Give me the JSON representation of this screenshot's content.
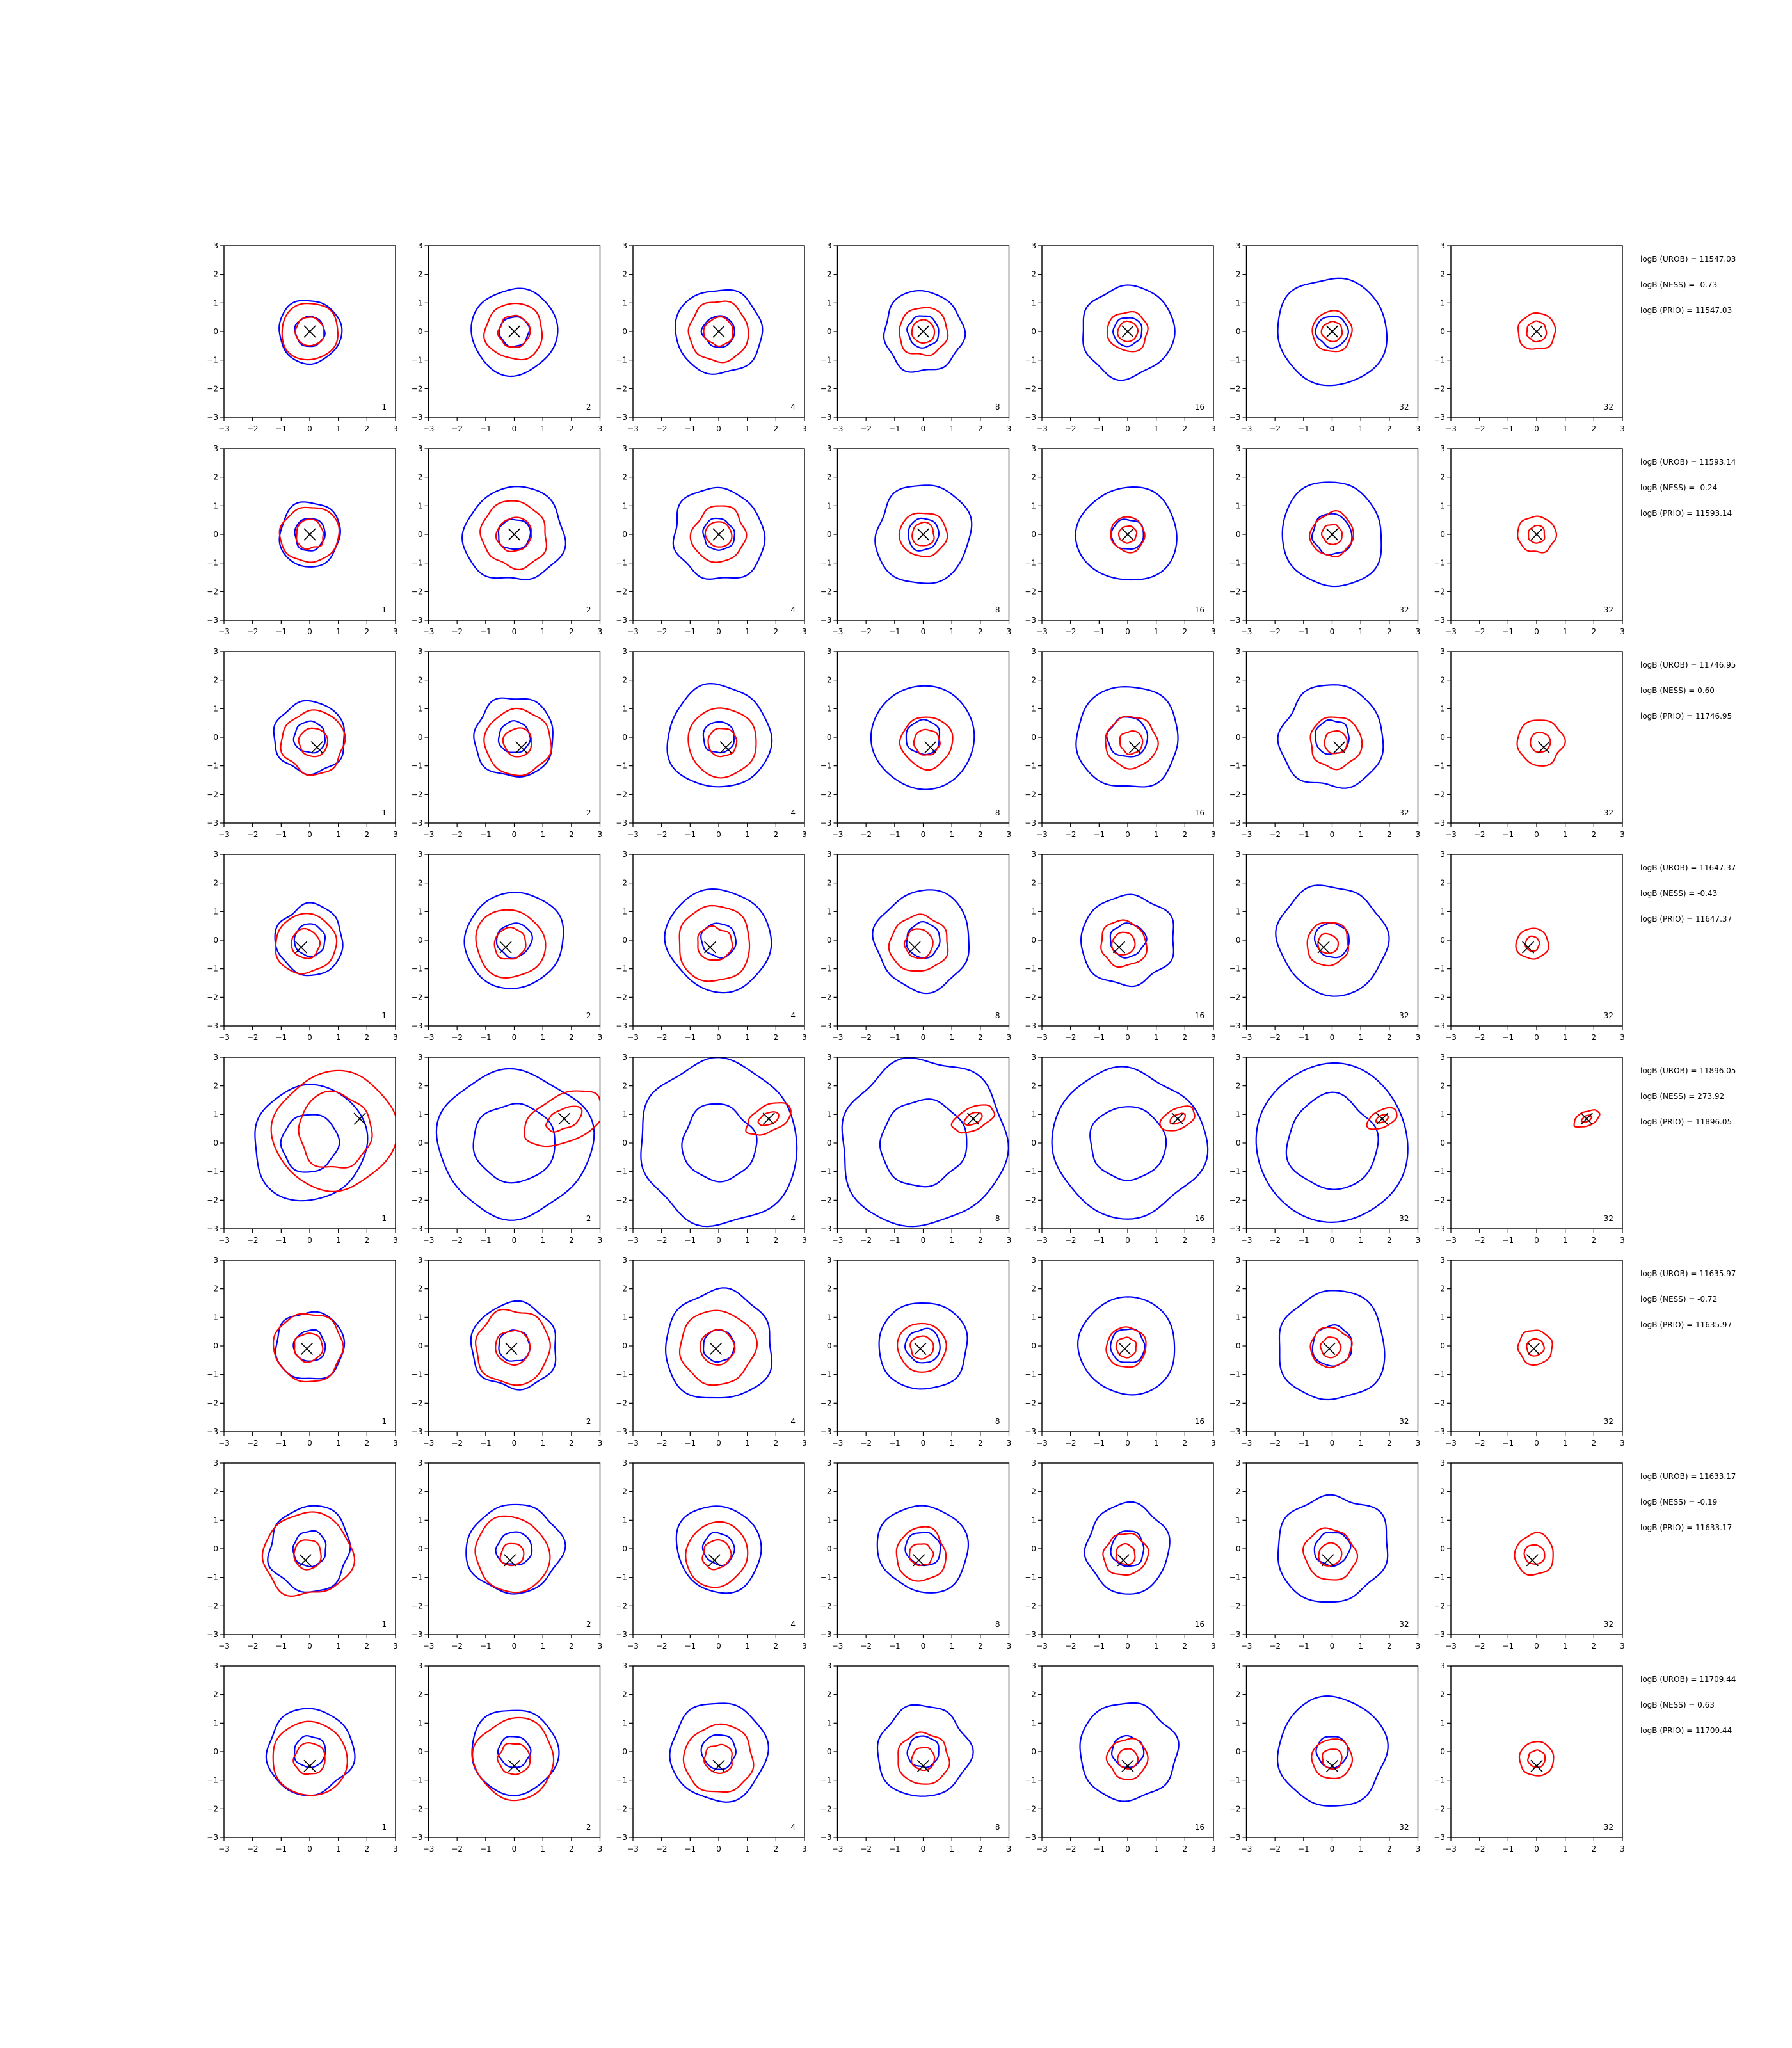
{
  "chart_data": {
    "type": "contour",
    "grid": {
      "rows": 8,
      "cols": 7
    },
    "axes": {
      "xlim": [
        -3,
        3
      ],
      "ylim": [
        -3,
        3
      ],
      "ticks": [
        -3,
        -2,
        -1,
        0,
        1,
        2,
        3
      ]
    },
    "colors": {
      "blue": "#0000ff",
      "red": "#ff0000",
      "marker": "#000000",
      "frame": "#000000"
    },
    "column_labels": [
      "1",
      "2",
      "4",
      "8",
      "16",
      "32",
      "32"
    ],
    "rows": [
      {
        "marker": [
          0.0,
          0.0
        ],
        "stats": [
          "logB (UROB) = 11547.03",
          "logB (NESS) = -0.73",
          "logB (PRIO) = 11547.03"
        ],
        "panels": [
          {
            "blue": [
              1.1,
              0.52
            ],
            "red": [
              1.0,
              0.5
            ]
          },
          {
            "blue": [
              1.5,
              0.52
            ],
            "red": [
              1.0,
              0.55
            ]
          },
          {
            "blue": [
              1.5,
              0.55
            ],
            "red": [
              1.05,
              0.5
            ]
          },
          {
            "blue": [
              1.4,
              0.55
            ],
            "red": [
              0.85,
              0.4
            ]
          },
          {
            "blue": [
              1.6,
              0.5
            ],
            "red": [
              0.7,
              0.35
            ]
          },
          {
            "blue": [
              1.9,
              0.55
            ],
            "red": [
              0.7,
              0.35
            ]
          },
          {
            "blue": [],
            "red": [
              0.65,
              0.35
            ]
          }
        ]
      },
      {
        "marker": [
          0.0,
          0.0
        ],
        "stats": [
          "logB (UROB) = 11593.14",
          "logB (NESS) = -0.24",
          "logB (PRIO) = 11593.14"
        ],
        "panels": [
          {
            "blue": [
              1.1,
              0.55
            ],
            "red": [
              1.0,
              0.5
            ]
          },
          {
            "blue": [
              1.7,
              0.55
            ],
            "red": [
              1.15,
              0.6
            ]
          },
          {
            "blue": [
              1.6,
              0.55
            ],
            "red": [
              0.95,
              0.45
            ]
          },
          {
            "blue": [
              1.7,
              0.55
            ],
            "red": [
              0.8,
              0.4
            ]
          },
          {
            "blue": [
              1.7,
              0.55
            ],
            "red": [
              0.6,
              0.3
            ]
          },
          {
            "blue": [
              1.8,
              0.7
            ],
            "red": [
              0.75,
              0.35
            ]
          },
          {
            "blue": [],
            "red": [
              0.65,
              0.3
            ]
          }
        ]
      },
      {
        "marker": [
          0.25,
          -0.35
        ],
        "stats": [
          "logB (UROB) = 11746.95",
          "logB (NESS) = 0.60",
          "logB (PRIO) = 11746.95"
        ],
        "panels": [
          {
            "blue": [
              1.25,
              0.55
            ],
            "red": [
              1.1,
              0.5
            ]
          },
          {
            "blue": [
              1.4,
              0.55
            ],
            "red": [
              1.15,
              0.5
            ]
          },
          {
            "blue": [
              1.8,
              0.55
            ],
            "red": [
              1.2,
              0.5
            ]
          },
          {
            "blue": [
              1.8,
              0.6
            ],
            "red": [
              0.9,
              0.45
            ]
          },
          {
            "blue": [
              1.8,
              0.7
            ],
            "red": [
              0.9,
              0.4
            ]
          },
          {
            "blue": [
              1.8,
              0.6
            ],
            "red": [
              0.9,
              0.4
            ]
          },
          {
            "blue": [],
            "red": [
              0.8,
              0.35
            ]
          }
        ]
      },
      {
        "marker": [
          -0.3,
          -0.25
        ],
        "stats": [
          "logB (UROB) = 11647.37",
          "logB (NESS) = -0.43",
          "logB (PRIO) = 11647.37"
        ],
        "panels": [
          {
            "blue": [
              1.2,
              0.55
            ],
            "red": [
              1.05,
              0.5
            ]
          },
          {
            "blue": [
              1.7,
              0.6
            ],
            "red": [
              1.2,
              0.55
            ]
          },
          {
            "blue": [
              1.8,
              0.6
            ],
            "red": [
              1.3,
              0.6
            ]
          },
          {
            "blue": [
              1.7,
              0.6
            ],
            "red": [
              1.0,
              0.5
            ]
          },
          {
            "blue": [
              1.6,
              0.6
            ],
            "red": [
              0.8,
              0.4
            ]
          },
          {
            "blue": [
              1.9,
              0.6
            ],
            "red": [
              0.75,
              0.35
            ]
          },
          {
            "blue": [],
            "red": [
              0.55,
              0.25
            ]
          }
        ]
      },
      {
        "marker": [
          1.75,
          0.85
        ],
        "stats": [
          "logB (UROB) = 11896.05",
          "logB (NESS) = 273.92",
          "logB (PRIO) = 11896.05"
        ],
        "panels": [
          {
            "blue": [
              2.0,
              1.0
            ],
            "red": [
              2.1,
              1.3
            ]
          },
          {
            "blue": [
              2.6,
              1.4
            ],
            "red": [
              0.8,
              0.35
            ]
          },
          {
            "blue": [
              2.8,
              1.3
            ],
            "red": [
              0.45,
              0.2
            ]
          },
          {
            "blue": [
              2.9,
              1.5
            ],
            "red": [
              0.4,
              0.18
            ]
          },
          {
            "blue": [
              2.6,
              1.3
            ],
            "red": [
              0.35,
              0.15
            ]
          },
          {
            "blue": [
              2.7,
              1.6
            ],
            "red": [
              0.3,
              0.12
            ]
          },
          {
            "blue": [],
            "red": [
              0.25,
              0.1
            ]
          }
        ]
      },
      {
        "marker": [
          -0.1,
          -0.1
        ],
        "stats": [
          "logB (UROB) = 11635.97",
          "logB (NESS) = -0.72",
          "logB (PRIO) = 11635.97"
        ],
        "panels": [
          {
            "blue": [
              1.2,
              0.55
            ],
            "red": [
              1.2,
              0.5
            ]
          },
          {
            "blue": [
              1.5,
              0.55
            ],
            "red": [
              1.3,
              0.6
            ]
          },
          {
            "blue": [
              1.9,
              0.55
            ],
            "red": [
              1.3,
              0.6
            ]
          },
          {
            "blue": [
              1.55,
              0.6
            ],
            "red": [
              0.85,
              0.4
            ]
          },
          {
            "blue": [
              1.7,
              0.6
            ],
            "red": [
              0.7,
              0.35
            ]
          },
          {
            "blue": [
              1.9,
              0.7
            ],
            "red": [
              0.7,
              0.35
            ]
          },
          {
            "blue": [],
            "red": [
              0.6,
              0.3
            ]
          }
        ]
      },
      {
        "marker": [
          -0.15,
          -0.4
        ],
        "stats": [
          "logB (UROB) = 11633.17",
          "logB (NESS) = -0.19",
          "logB (PRIO) = 11633.17"
        ],
        "panels": [
          {
            "blue": [
              1.45,
              0.6
            ],
            "red": [
              1.5,
              0.5
            ]
          },
          {
            "blue": [
              1.6,
              0.6
            ],
            "red": [
              1.3,
              0.4
            ]
          },
          {
            "blue": [
              1.5,
              0.55
            ],
            "red": [
              1.1,
              0.5
            ]
          },
          {
            "blue": [
              1.55,
              0.6
            ],
            "red": [
              0.9,
              0.4
            ]
          },
          {
            "blue": [
              1.5,
              0.6
            ],
            "red": [
              0.75,
              0.35
            ]
          },
          {
            "blue": [
              1.9,
              0.6
            ],
            "red": [
              0.9,
              0.4
            ]
          },
          {
            "blue": [],
            "red": [
              0.7,
              0.35
            ]
          }
        ]
      },
      {
        "marker": [
          0.0,
          -0.5
        ],
        "stats": [
          "logB (UROB) = 11709.44",
          "logB (NESS) = 0.63",
          "logB (PRIO) = 11709.44"
        ],
        "panels": [
          {
            "blue": [
              1.5,
              0.55
            ],
            "red": [
              1.3,
              0.55
            ]
          },
          {
            "blue": [
              1.5,
              0.55
            ],
            "red": [
              1.4,
              0.55
            ]
          },
          {
            "blue": [
              1.7,
              0.6
            ],
            "red": [
              1.2,
              0.5
            ]
          },
          {
            "blue": [
              1.6,
              0.55
            ],
            "red": [
              0.9,
              0.4
            ]
          },
          {
            "blue": [
              1.7,
              0.55
            ],
            "red": [
              0.7,
              0.35
            ]
          },
          {
            "blue": [
              1.9,
              0.55
            ],
            "red": [
              0.7,
              0.35
            ]
          },
          {
            "blue": [],
            "red": [
              0.6,
              0.3
            ]
          }
        ]
      }
    ]
  }
}
